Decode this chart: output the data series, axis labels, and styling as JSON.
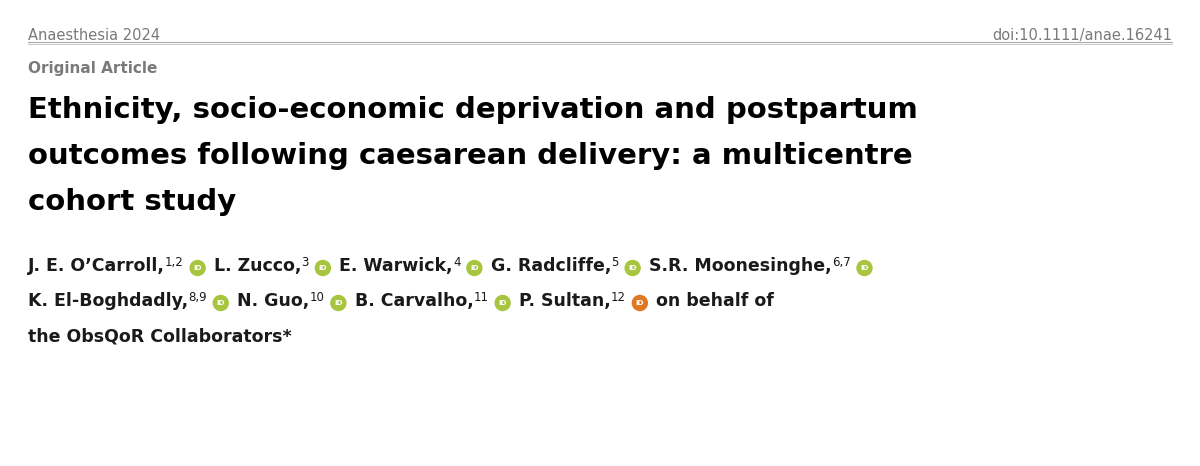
{
  "background_color": "#ffffff",
  "journal_name": "Anaesthesia 2024",
  "doi": "doi:10.1111/anae.16241",
  "section_label": "Original Article",
  "title_line1": "Ethnicity, socio-economic deprivation and postpartum",
  "title_line2": "outcomes following caesarean delivery: a multicentre",
  "title_line3": "cohort study",
  "header_text_color": "#7a7a7a",
  "section_color": "#7a7a7a",
  "title_color": "#000000",
  "author_color": "#1a1a1a",
  "orcid_bg": "#a8c540",
  "orcid_text": "#ffffff",
  "orcid_orange_bg": "#e07820",
  "line_color": "#aaaaaa",
  "journal_fontsize": 10.5,
  "section_fontsize": 11,
  "title_fontsize": 21,
  "author_fontsize": 12.5
}
